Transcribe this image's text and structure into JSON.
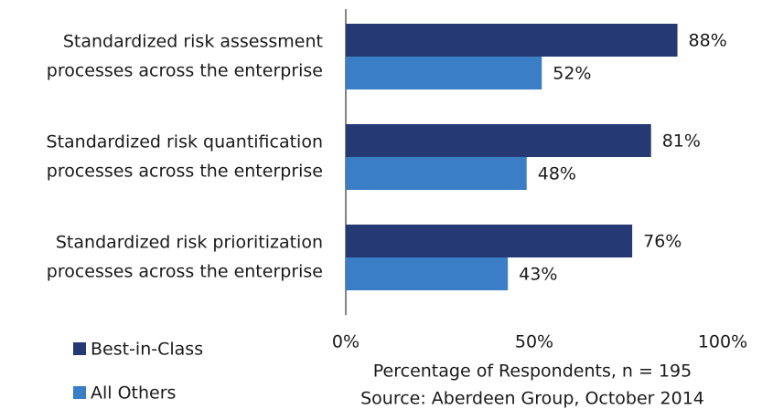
{
  "chart_data": {
    "type": "bar",
    "orientation": "horizontal",
    "categories": [
      [
        "Standardized risk assessment",
        "processes across the enterprise"
      ],
      [
        "Standardized risk quantification",
        "processes across the enterprise"
      ],
      [
        "Standardized risk prioritization",
        "processes across the enterprise"
      ]
    ],
    "series": [
      {
        "name": "Best-in-Class",
        "color": "#253a74",
        "values": [
          88,
          81,
          76
        ],
        "value_labels": [
          "88%",
          "81%",
          "76%"
        ]
      },
      {
        "name": "All Others",
        "color": "#3a7fc5",
        "values": [
          52,
          48,
          43
        ],
        "value_labels": [
          "52%",
          "48%",
          "43%"
        ]
      }
    ],
    "xlim": [
      0,
      100
    ],
    "xticks": [
      {
        "value": 0,
        "label": "0%"
      },
      {
        "value": 50,
        "label": "50%"
      },
      {
        "value": 100,
        "label": "100%"
      }
    ],
    "xlabel": "Percentage of Respondents, n = 195",
    "source": "Source: Aberdeen Group, October 2014",
    "legend": "bottom-left"
  }
}
